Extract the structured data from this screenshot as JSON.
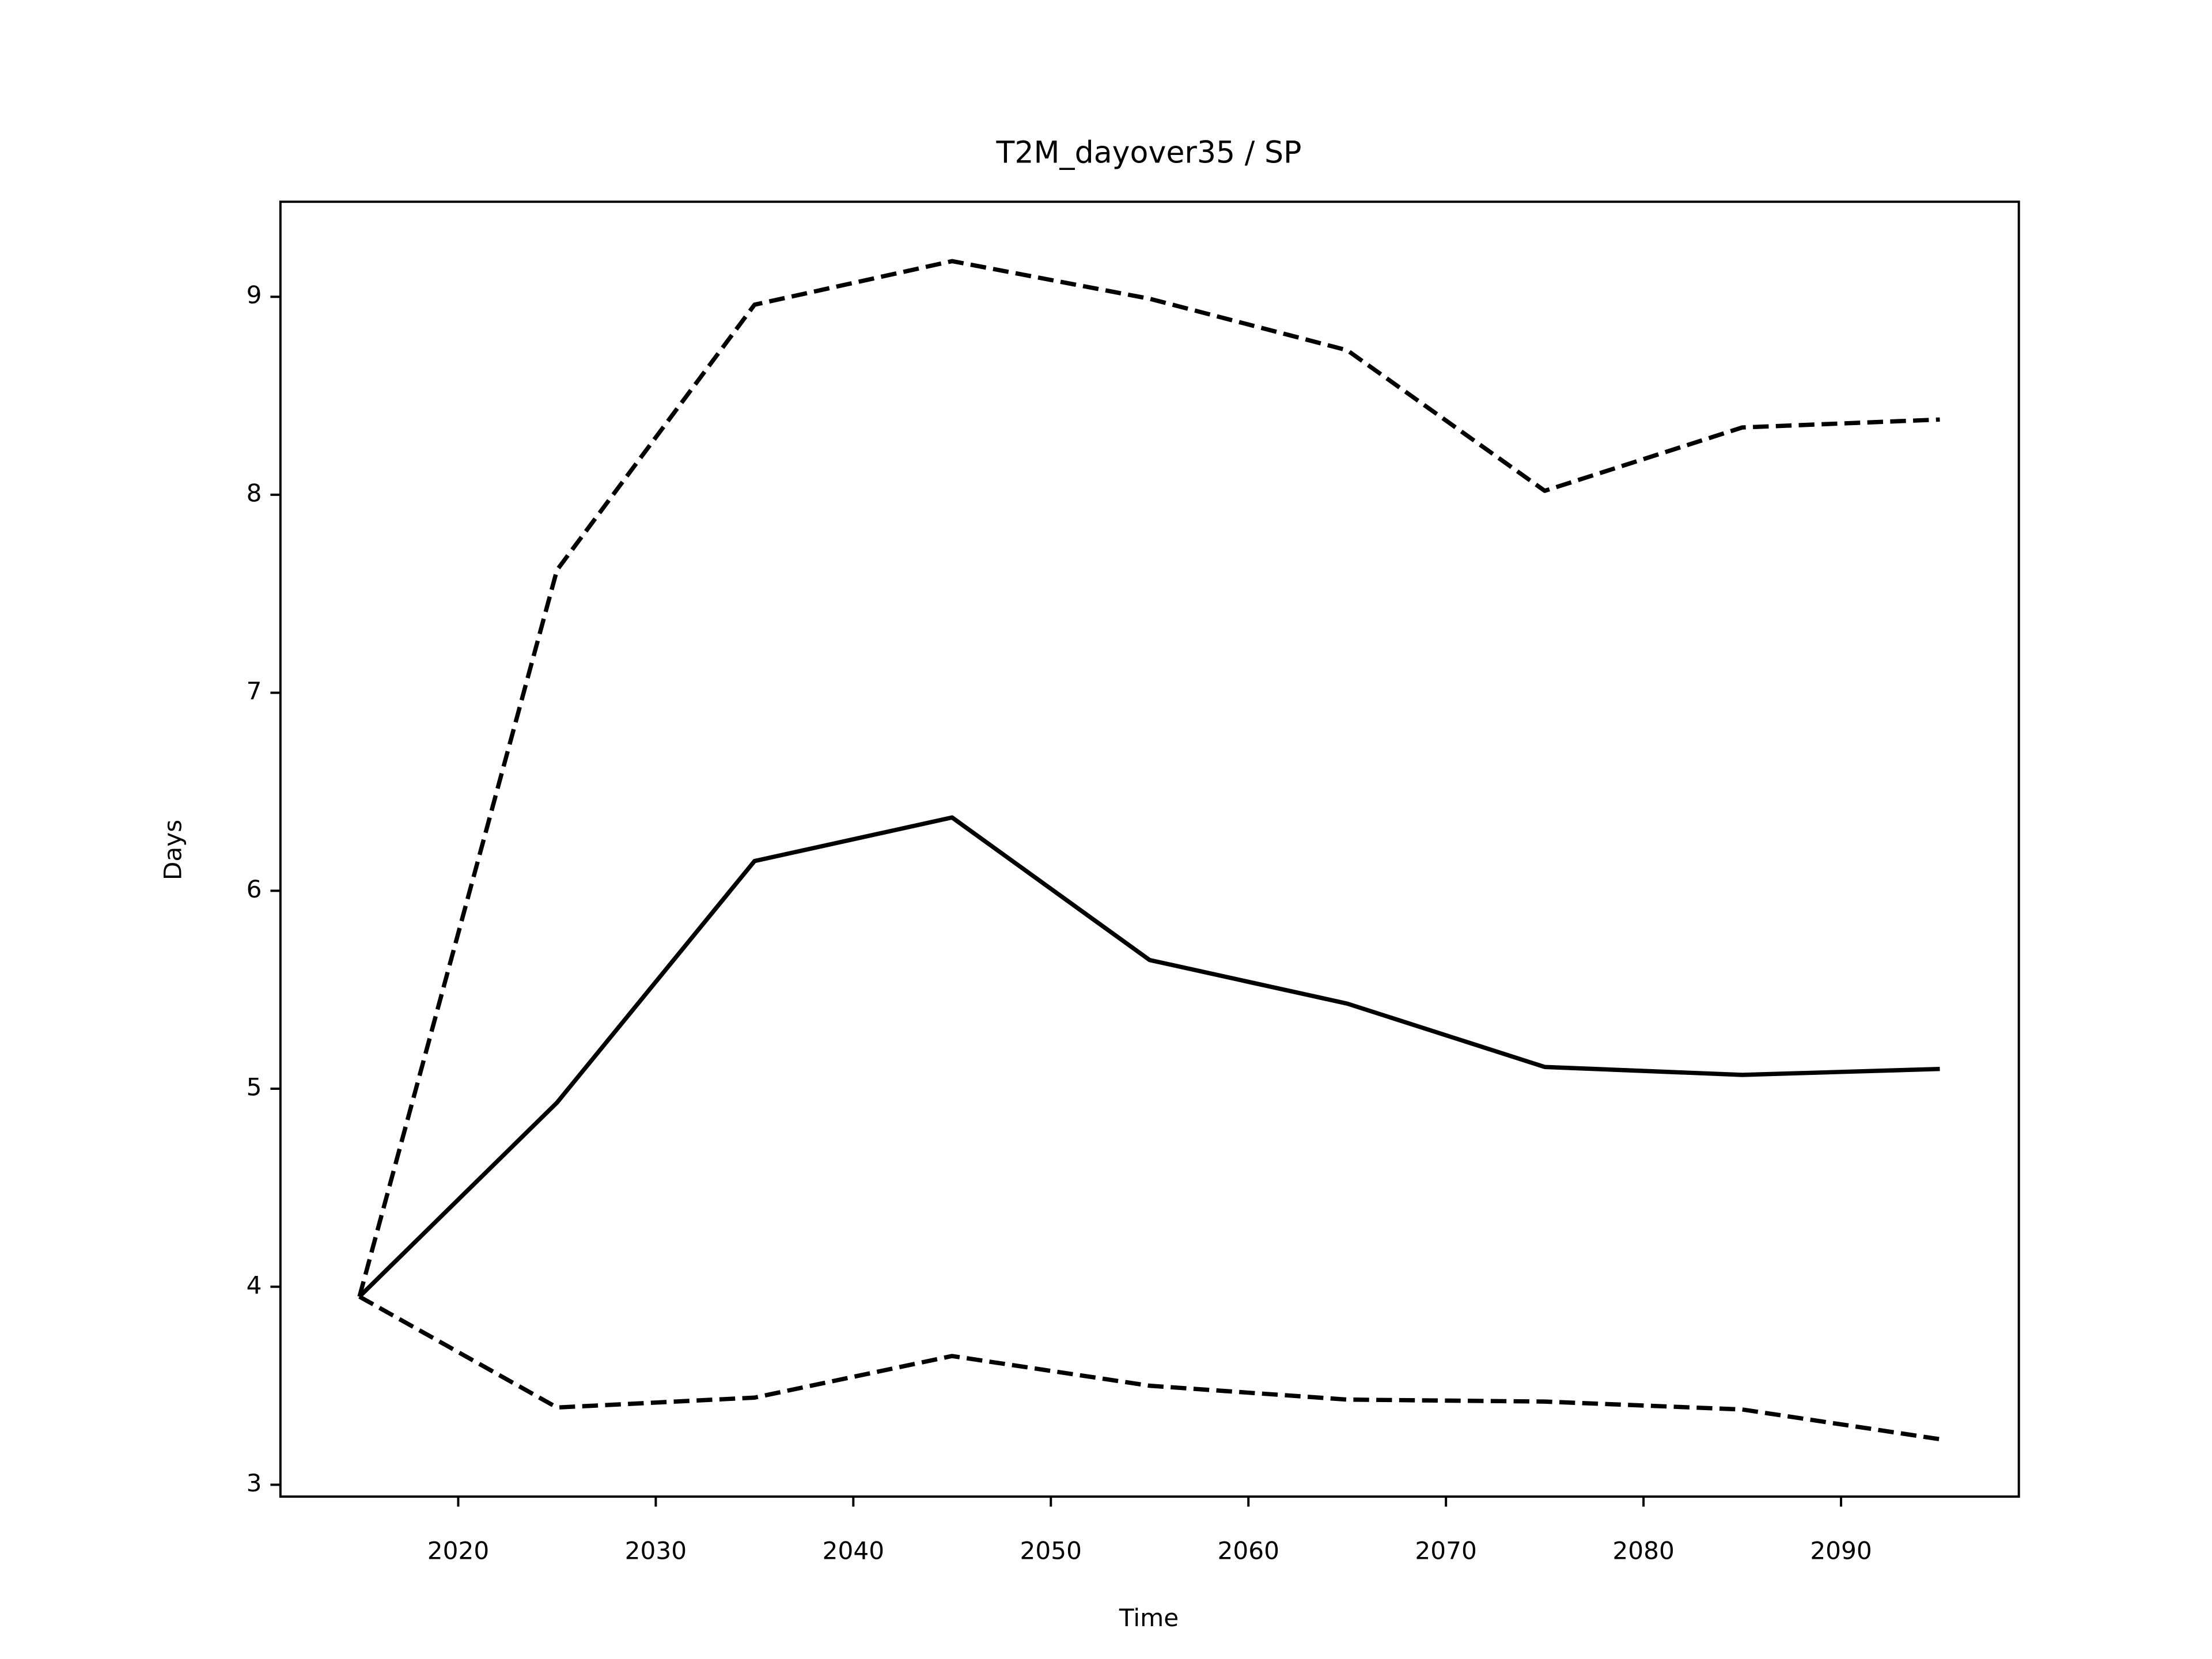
{
  "chart_data": {
    "type": "line",
    "title": "T2M_dayover35 / SP",
    "xlabel": "Time",
    "ylabel": "Days",
    "x": [
      2015,
      2025,
      2035,
      2045,
      2055,
      2065,
      2075,
      2085,
      2095
    ],
    "series": [
      {
        "color": "#000000",
        "dashed": false,
        "values": [
          3.95,
          4.93,
          6.15,
          6.37,
          5.65,
          5.43,
          5.11,
          5.07,
          5.1
        ]
      },
      {
        "color": "#000000",
        "dashed": true,
        "values": [
          3.95,
          7.62,
          8.96,
          9.18,
          8.99,
          8.73,
          8.02,
          8.34,
          8.38
        ]
      },
      {
        "color": "#000000",
        "dashed": true,
        "values": [
          3.95,
          3.39,
          3.44,
          3.65,
          3.5,
          3.43,
          3.42,
          3.38,
          3.23
        ]
      }
    ],
    "xlim": [
      2011,
      2099
    ],
    "xticks": [
      2020,
      2030,
      2040,
      2050,
      2060,
      2070,
      2080,
      2090
    ],
    "ylim": [
      2.94,
      9.48
    ],
    "yticks": [
      3,
      4,
      5,
      6,
      7,
      8,
      9
    ],
    "grid": false
  }
}
